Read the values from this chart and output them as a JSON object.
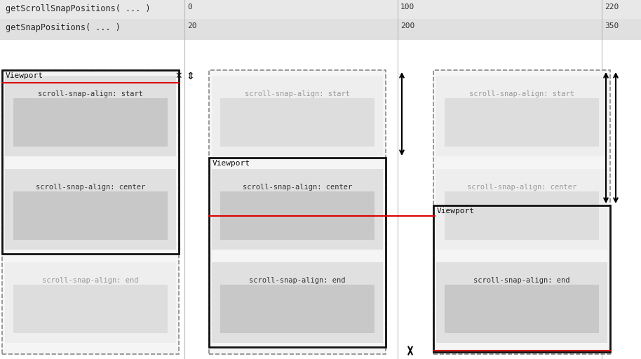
{
  "fig_width": 9.14,
  "fig_height": 5.12,
  "bg_color": "#ffffff",
  "header1_bg": "#e8e8e8",
  "header2_bg": "#e0e0e0",
  "item_bg_active": "#e0e0e0",
  "item_box_active": "#c8c8c8",
  "item_bg_inactive": "#eeeeee",
  "item_box_inactive": "#dddddd",
  "dashed_color": "#888888",
  "viewport_color": "#111111",
  "red": "#dd0000",
  "header1_text": "getScrollSnapPositions( ... )",
  "header2_text": "getSnapPositions( ... )",
  "col_labels_row1": [
    "0",
    "100",
    "220"
  ],
  "col_labels_row2": [
    "20",
    "200",
    "350"
  ],
  "snap_label_start": "scroll-snap-align: start",
  "snap_label_center": "scroll-snap-align: center",
  "snap_label_end": "scroll-snap-align: end"
}
